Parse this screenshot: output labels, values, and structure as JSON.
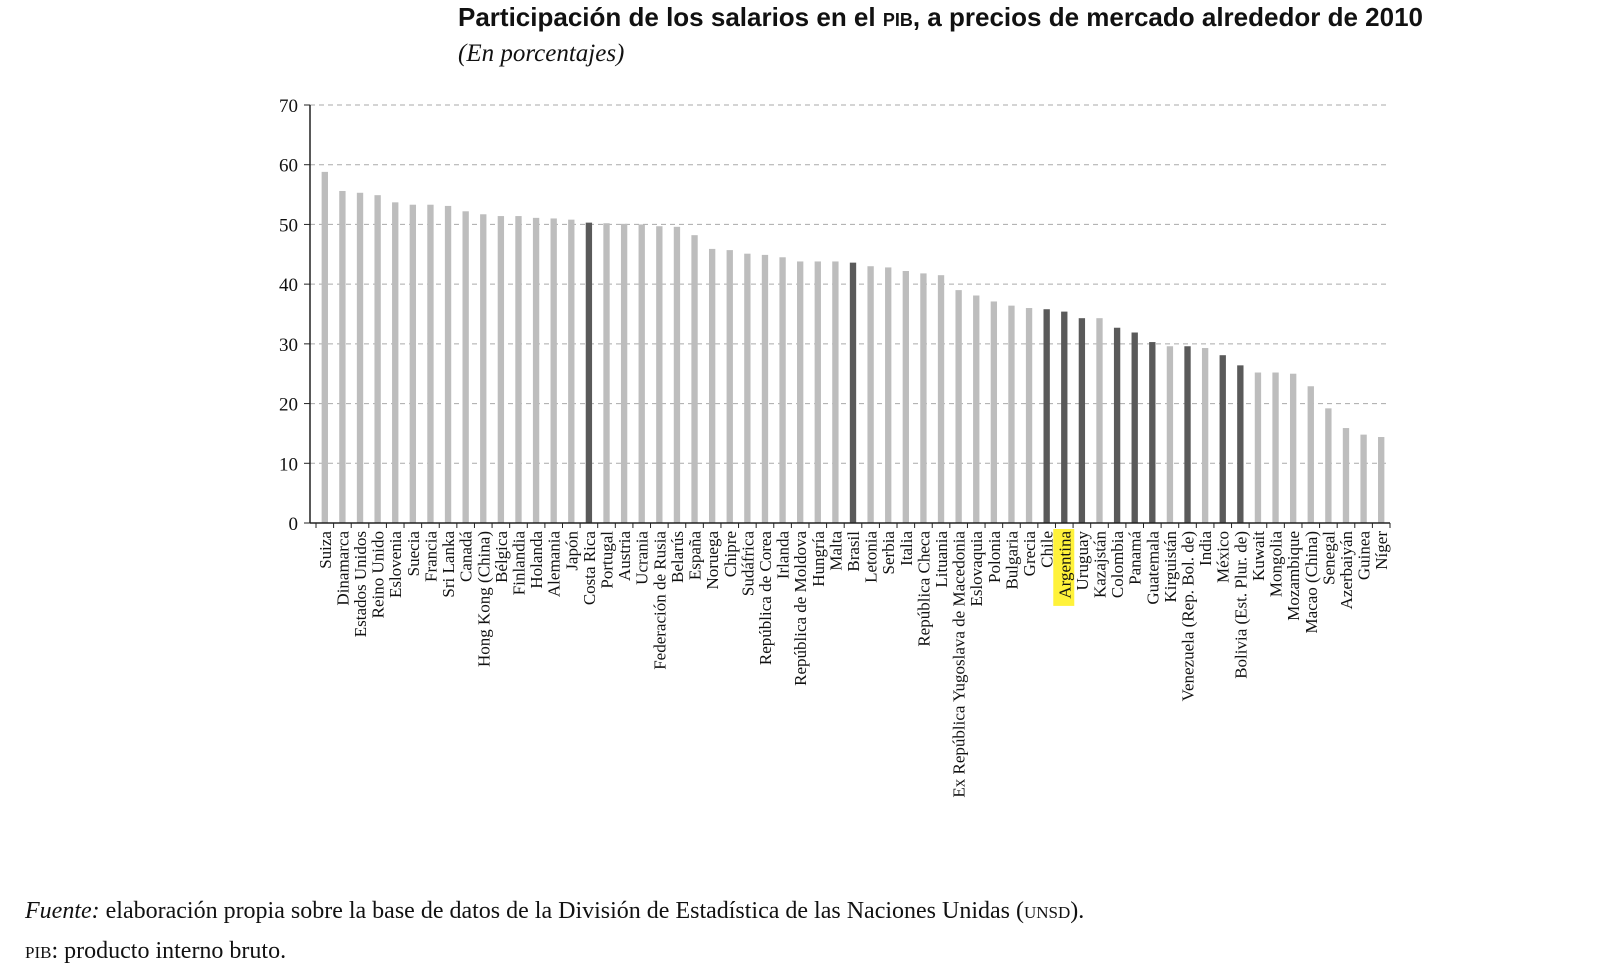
{
  "title": {
    "pre": "Participación de los salarios en el ",
    "abbr": "pib",
    "post": ", a precios de mercado alrededor de 2010"
  },
  "subtitle": "(En porcentajes)",
  "footer": {
    "source_label": "Fuente:",
    "source_text": " elaboración propia sobre la base de datos de la División de Estadística de las Naciones Unidas (",
    "source_abbr": "unsd",
    "source_end": ").",
    "note_abbr": "pib",
    "note_text": ": producto interno bruto."
  },
  "colors": {
    "bar_light": "#bdbdbd",
    "bar_dark": "#5a5a5a",
    "highlight": "#fff23a",
    "grid": "#aaaaaa",
    "axis": "#222222"
  },
  "chart_data": {
    "type": "bar",
    "title": "Participación de los salarios en el PIB, a precios de mercado alrededor de 2010",
    "subtitle": "(En porcentajes)",
    "ylim": [
      0,
      70
    ],
    "yticks": [
      0,
      10,
      20,
      30,
      40,
      50,
      60,
      70
    ],
    "grid": "horizontal dashed",
    "highlighted_category": "Argentina",
    "categories": [
      "Suiza",
      "Dinamarca",
      "Estados Unidos",
      "Reino Unido",
      "Eslovenia",
      "Suecia",
      "Francia",
      "Sri Lanka",
      "Canadá",
      "Hong Kong (China)",
      "Bélgica",
      "Finlandia",
      "Holanda",
      "Alemania",
      "Japón",
      "Costa Rica",
      "Portugal",
      "Austria",
      "Ucrania",
      "Federación de Rusia",
      "Belarús",
      "España",
      "Noruega",
      "Chipre",
      "Sudáfrica",
      "República de Corea",
      "Irlanda",
      "República de Moldova",
      "Hungría",
      "Malta",
      "Brasil",
      "Letonia",
      "Serbia",
      "Italia",
      "República Checa",
      "Lituania",
      "Ex República Yugoslava de Macedonia",
      "Eslovaquia",
      "Polonia",
      "Bulgaria",
      "Grecia",
      "Chile",
      "Argentina",
      "Uruguay",
      "Kazajstán",
      "Colombia",
      "Panamá",
      "Guatemala",
      "Kirguistán",
      "Venezuela (Rep. Bol. de)",
      "India",
      "México",
      "Bolivia (Est. Plur. de)",
      "Kuwait",
      "Mongolia",
      "Mozambique",
      "Macao (China)",
      "Senegal",
      "Azerbaiyán",
      "Guinea",
      "Níger"
    ],
    "values": [
      58.8,
      55.6,
      55.3,
      54.9,
      53.7,
      53.3,
      53.3,
      53.1,
      52.2,
      51.7,
      51.4,
      51.4,
      51.1,
      51.0,
      50.8,
      50.3,
      50.2,
      50.1,
      50.0,
      49.7,
      49.6,
      48.2,
      45.9,
      45.7,
      45.1,
      44.9,
      44.5,
      43.8,
      43.8,
      43.8,
      43.6,
      43.0,
      42.8,
      42.2,
      41.8,
      41.5,
      39.0,
      38.1,
      37.1,
      36.4,
      36.0,
      35.8,
      35.4,
      34.3,
      34.3,
      32.7,
      31.9,
      30.3,
      29.6,
      29.6,
      29.3,
      28.1,
      26.4,
      25.2,
      25.2,
      25.0,
      22.9,
      19.2,
      15.9,
      14.8,
      14.4
    ],
    "dark_categories": [
      "Costa Rica",
      "Brasil",
      "Chile",
      "Argentina",
      "Uruguay",
      "Colombia",
      "Panamá",
      "Guatemala",
      "Venezuela (Rep. Bol. de)",
      "México",
      "Bolivia (Est. Plur. de)"
    ]
  }
}
